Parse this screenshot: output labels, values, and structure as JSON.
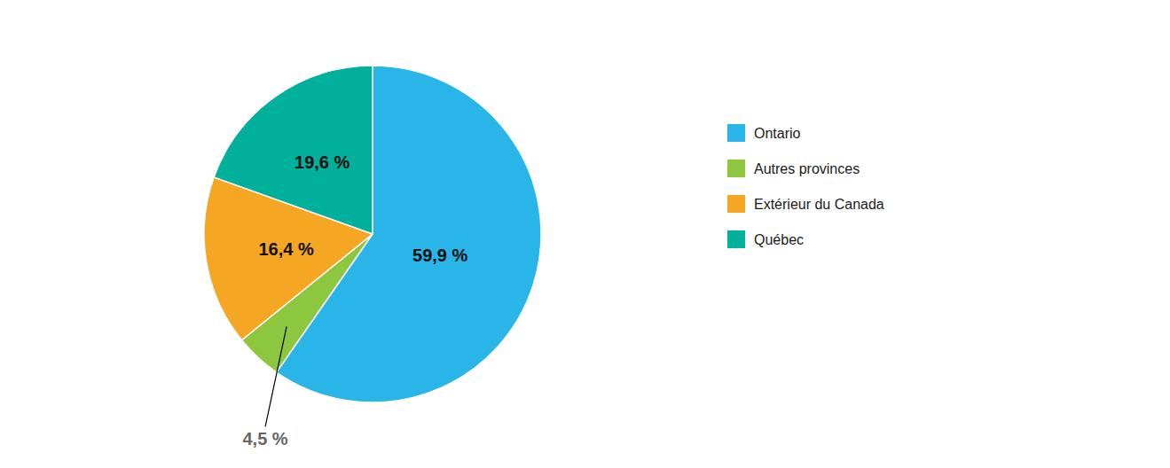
{
  "chart_data": {
    "type": "pie",
    "categories": [
      "Ontario",
      "Autres provinces",
      "Extérieur du Canada",
      "Québec"
    ],
    "values": [
      59.9,
      4.5,
      16.4,
      19.6
    ],
    "value_labels": [
      "59,9 %",
      "4,5 %",
      "16,4 %",
      "19,6 %"
    ],
    "colors": [
      "#29B5E8",
      "#8DC63F",
      "#F5A623",
      "#00B09B"
    ],
    "data_labels": true,
    "legend": "right"
  }
}
